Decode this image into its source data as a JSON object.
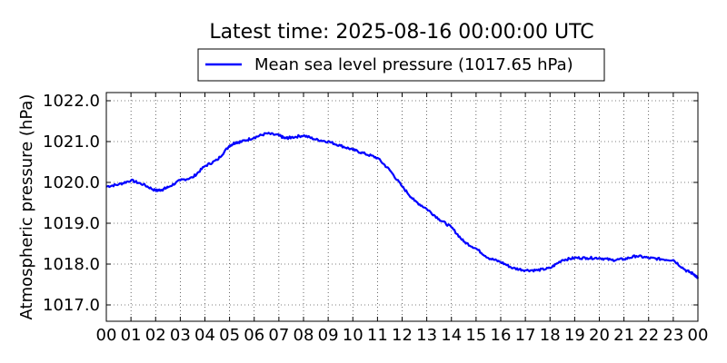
{
  "chart_data": {
    "type": "line",
    "title": "Latest time: 2025-08-16 00:00:00 UTC",
    "ylabel": "Atmospheric pressure (hPa)",
    "xlabel": "",
    "x_unit": "hour (UTC)",
    "xlim": [
      0,
      24
    ],
    "ylim": [
      1016.6,
      1022.2
    ],
    "grid": true,
    "legend_placement": "top-center",
    "x_ticks": [
      "00",
      "01",
      "02",
      "03",
      "04",
      "05",
      "06",
      "07",
      "08",
      "09",
      "10",
      "11",
      "12",
      "13",
      "14",
      "15",
      "16",
      "17",
      "18",
      "19",
      "20",
      "21",
      "22",
      "23",
      "00"
    ],
    "y_ticks": [
      "1017.0",
      "1018.0",
      "1019.0",
      "1020.0",
      "1021.0",
      "1022.0"
    ],
    "y_tick_values": [
      1017.0,
      1018.0,
      1019.0,
      1020.0,
      1021.0,
      1022.0
    ],
    "series": [
      {
        "name": "Mean sea level pressure (1017.65 hPa)",
        "color": "#0000ff",
        "x": [
          0.0,
          0.5,
          1.0,
          1.5,
          2.0,
          2.25,
          2.5,
          3.0,
          3.5,
          4.0,
          4.5,
          5.0,
          5.25,
          5.5,
          6.0,
          6.5,
          7.0,
          7.25,
          7.5,
          8.0,
          8.5,
          9.0,
          9.5,
          10.0,
          10.5,
          11.0,
          11.5,
          12.0,
          12.5,
          13.0,
          13.5,
          14.0,
          14.5,
          15.0,
          15.5,
          16.0,
          16.5,
          17.0,
          17.5,
          18.0,
          18.5,
          19.0,
          19.5,
          20.0,
          20.5,
          21.0,
          21.5,
          22.0,
          22.5,
          23.0,
          23.5,
          23.85,
          24.0
        ],
        "y": [
          1019.9,
          1019.95,
          1020.05,
          1019.95,
          1019.8,
          1019.82,
          1019.88,
          1020.05,
          1020.12,
          1020.4,
          1020.55,
          1020.9,
          1020.98,
          1021.0,
          1021.1,
          1021.2,
          1021.15,
          1021.08,
          1021.1,
          1021.15,
          1021.05,
          1021.0,
          1020.9,
          1020.8,
          1020.7,
          1020.6,
          1020.3,
          1019.9,
          1019.55,
          1019.35,
          1019.1,
          1018.9,
          1018.55,
          1018.38,
          1018.15,
          1018.05,
          1017.9,
          1017.85,
          1017.85,
          1017.9,
          1018.1,
          1018.15,
          1018.15,
          1018.15,
          1018.1,
          1018.12,
          1018.2,
          1018.15,
          1018.12,
          1018.1,
          1017.85,
          1017.75,
          1017.65
        ]
      }
    ]
  }
}
